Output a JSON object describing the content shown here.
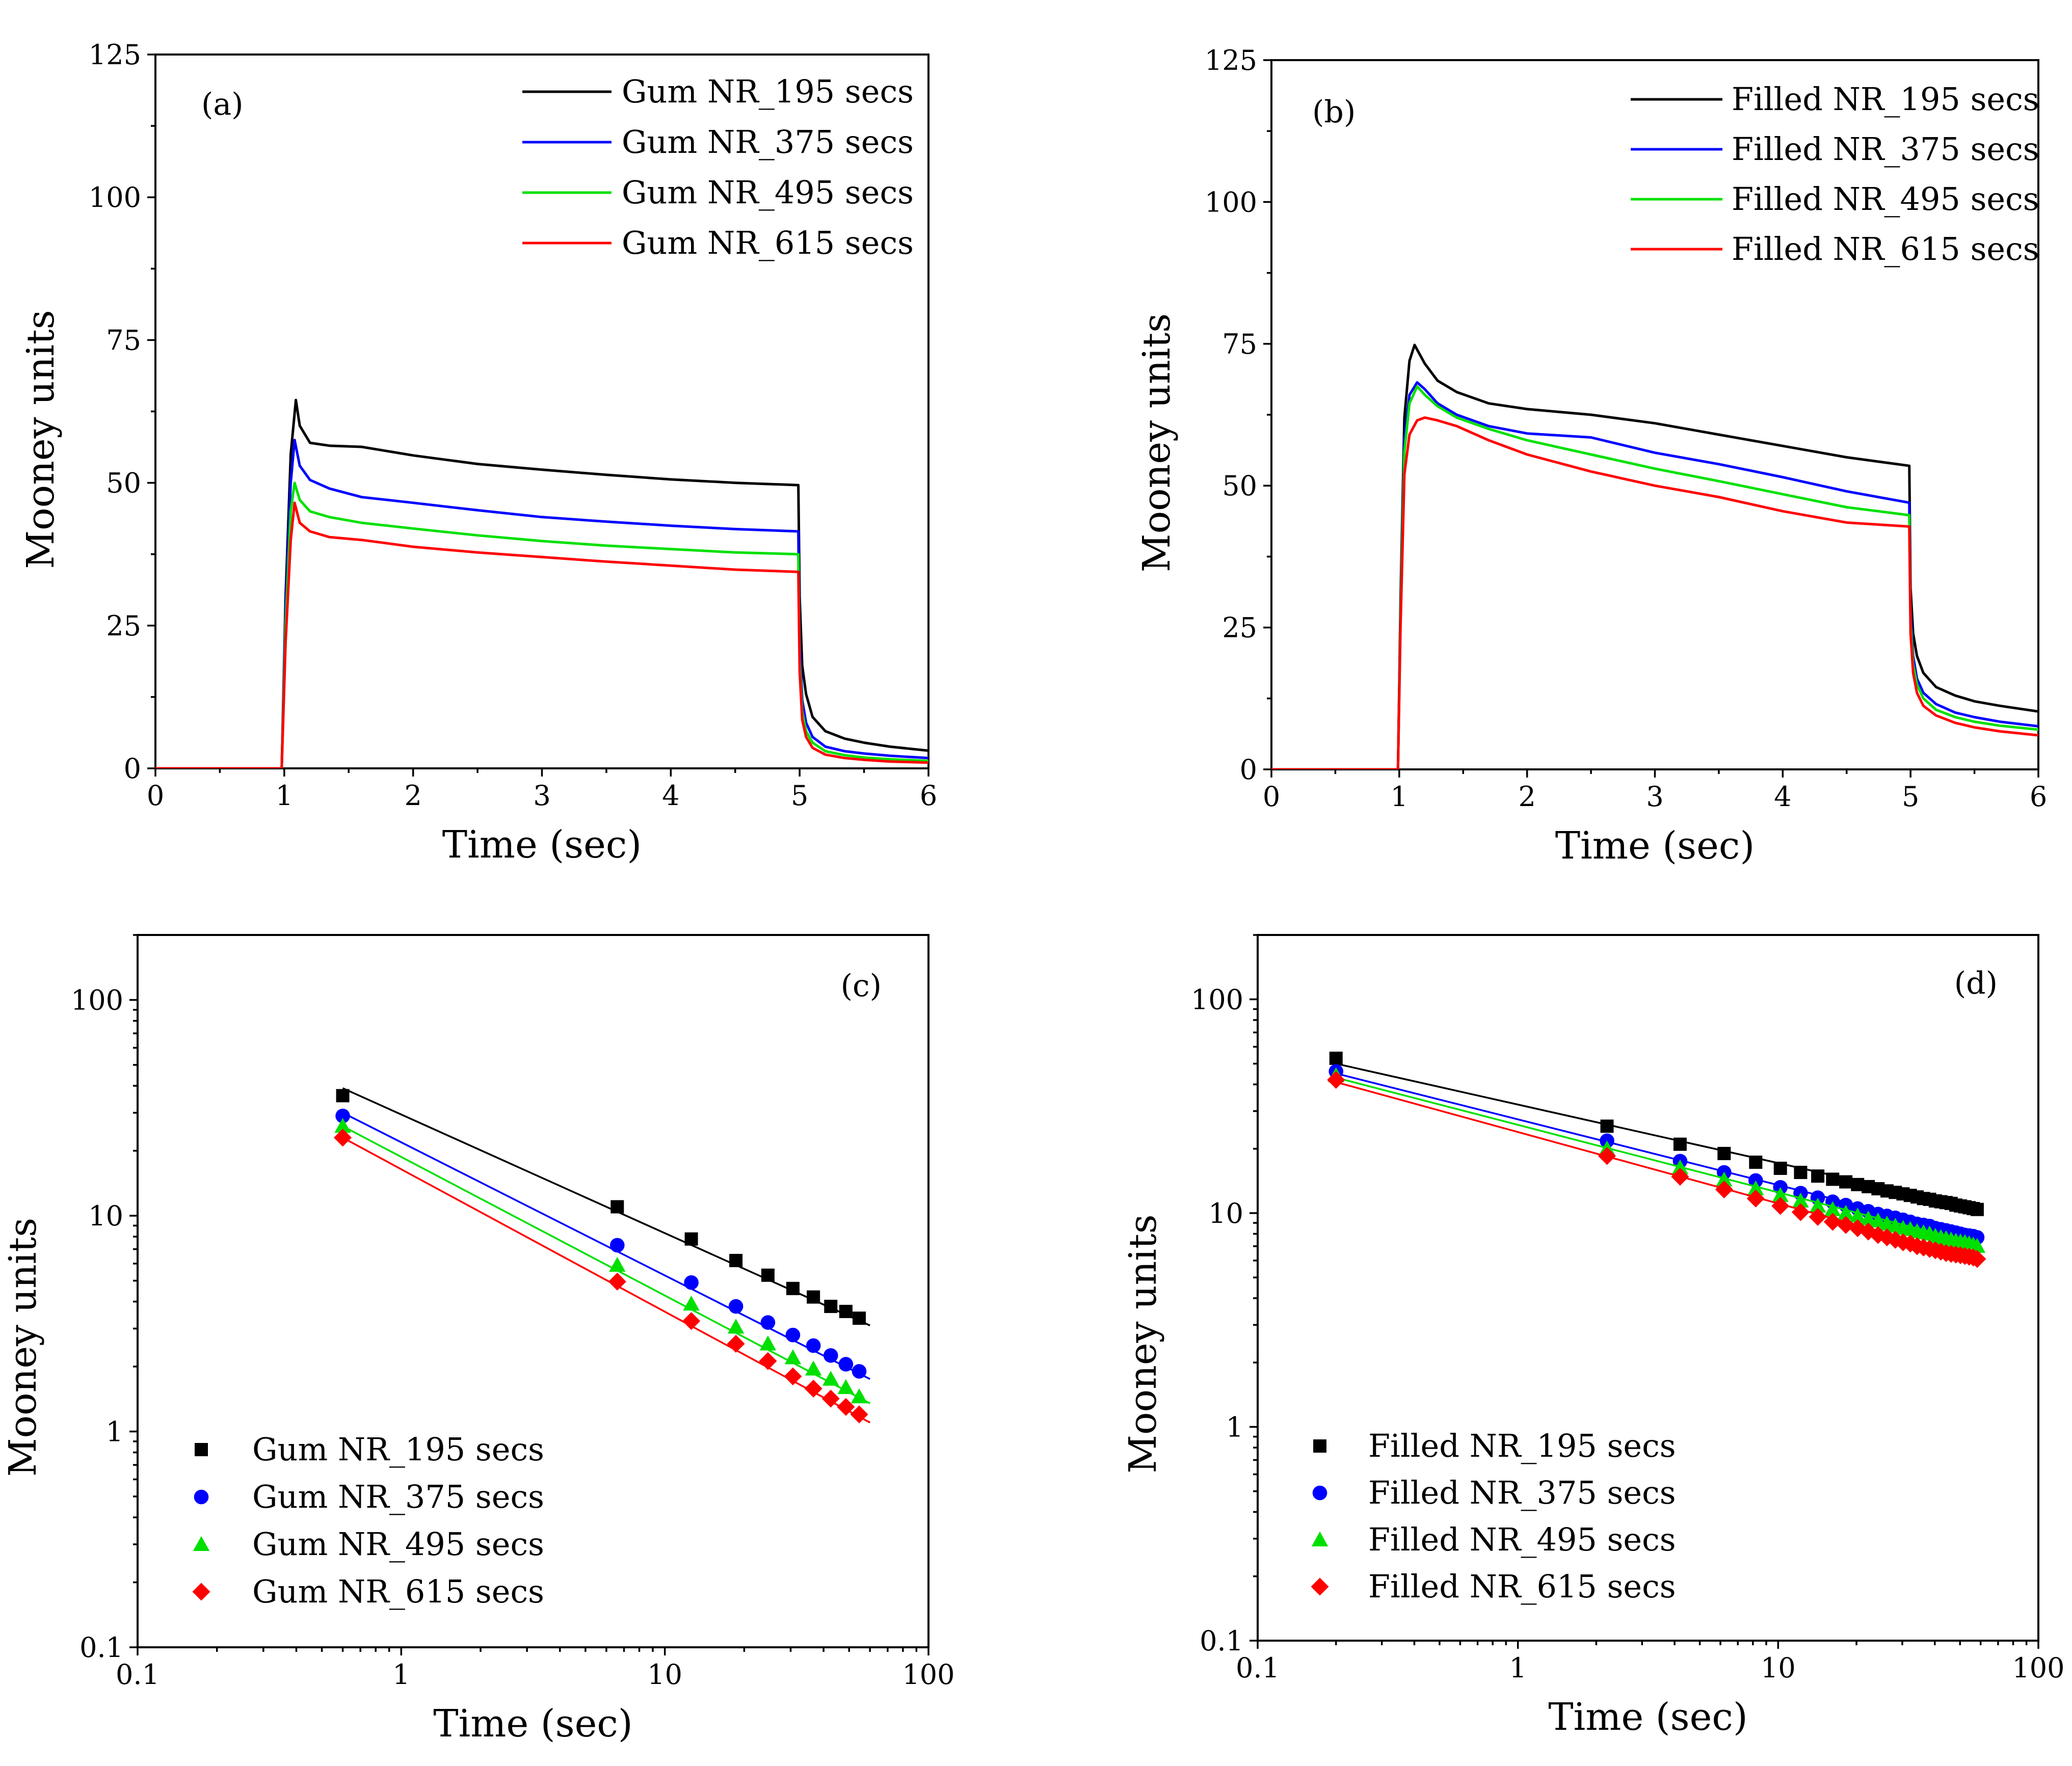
{
  "colors": {
    "black": "#000000",
    "blue": "#0000ff",
    "green": "#00e000",
    "red": "#ff0000"
  },
  "chart_data": [
    {
      "id": "a",
      "panel_label": "(a)",
      "type": "line",
      "xlabel": "Time (sec)",
      "ylabel": "Mooney units",
      "xlim": [
        0,
        6
      ],
      "ylim": [
        0,
        125
      ],
      "xticks": [
        "0",
        "1",
        "2",
        "3",
        "4",
        "5",
        "6"
      ],
      "yticks": [
        "0",
        "25",
        "50",
        "75",
        "100",
        "125"
      ],
      "legend_position": "top-right",
      "series": [
        {
          "name": "Gum NR_195 secs",
          "color": "#000000",
          "x": [
            0,
            0.98,
            1.01,
            1.05,
            1.09,
            1.12,
            1.2,
            1.35,
            1.6,
            2,
            2.5,
            3,
            3.5,
            4,
            4.5,
            4.99,
            5.0,
            5.02,
            5.05,
            5.1,
            5.2,
            5.35,
            5.5,
            5.7,
            6
          ],
          "y": [
            0,
            0,
            30,
            55,
            64.5,
            60,
            57,
            56.5,
            56.3,
            54.8,
            53.3,
            52.3,
            51.4,
            50.6,
            50.0,
            49.6,
            30,
            18,
            13,
            9,
            6.5,
            5.2,
            4.5,
            3.8,
            3.1
          ]
        },
        {
          "name": "Gum NR_375 secs",
          "color": "#0000ff",
          "x": [
            0,
            0.98,
            1.01,
            1.05,
            1.08,
            1.12,
            1.2,
            1.35,
            1.6,
            2,
            2.5,
            3,
            3.5,
            4,
            4.5,
            4.99,
            5.0,
            5.02,
            5.05,
            5.1,
            5.2,
            5.35,
            5.5,
            5.7,
            6
          ],
          "y": [
            0,
            0,
            28,
            50,
            57.5,
            53,
            50.5,
            49,
            47.5,
            46.5,
            45.2,
            44.0,
            43.2,
            42.5,
            41.9,
            41.5,
            22,
            12,
            8,
            5.5,
            3.8,
            3.0,
            2.6,
            2.2,
            1.8
          ]
        },
        {
          "name": "Gum NR_495 secs",
          "color": "#00e000",
          "x": [
            0,
            0.98,
            1.01,
            1.05,
            1.08,
            1.12,
            1.2,
            1.35,
            1.6,
            2,
            2.5,
            3,
            3.5,
            4,
            4.5,
            4.99,
            5.0,
            5.02,
            5.05,
            5.1,
            5.2,
            5.35,
            5.5,
            5.7,
            6
          ],
          "y": [
            0,
            0,
            25,
            45,
            50,
            47,
            45,
            44,
            43,
            42,
            40.8,
            39.8,
            39.0,
            38.4,
            37.8,
            37.5,
            19,
            10,
            6.5,
            4.5,
            3.0,
            2.3,
            1.9,
            1.6,
            1.3
          ]
        },
        {
          "name": "Gum NR_615 secs",
          "color": "#ff0000",
          "x": [
            0,
            0.98,
            1.01,
            1.05,
            1.08,
            1.12,
            1.2,
            1.35,
            1.6,
            2,
            2.5,
            3,
            3.5,
            4,
            4.5,
            4.99,
            5.0,
            5.02,
            5.05,
            5.1,
            5.2,
            5.35,
            5.5,
            5.7,
            6
          ],
          "y": [
            0,
            0,
            22,
            40,
            46.5,
            43,
            41.5,
            40.5,
            40,
            38.8,
            37.8,
            37.0,
            36.2,
            35.5,
            34.8,
            34.4,
            17,
            8.5,
            5.5,
            3.6,
            2.4,
            1.8,
            1.5,
            1.2,
            1.0
          ]
        }
      ]
    },
    {
      "id": "b",
      "panel_label": "(b)",
      "type": "line",
      "xlabel": "Time (sec)",
      "ylabel": "Mooney units",
      "xlim": [
        0,
        6
      ],
      "ylim": [
        0,
        125
      ],
      "xticks": [
        "0",
        "1",
        "2",
        "3",
        "4",
        "5",
        "6"
      ],
      "yticks": [
        "0",
        "25",
        "50",
        "75",
        "100",
        "125"
      ],
      "legend_position": "top-right",
      "series": [
        {
          "name": "Filled NR_195 secs",
          "color": "#000000",
          "x": [
            0,
            0.99,
            1.01,
            1.04,
            1.08,
            1.12,
            1.2,
            1.3,
            1.45,
            1.7,
            2,
            2.5,
            3,
            3.5,
            4,
            4.5,
            4.99,
            5.0,
            5.02,
            5.05,
            5.1,
            5.2,
            5.35,
            5.5,
            5.7,
            6
          ],
          "y": [
            0,
            0,
            30,
            62,
            72,
            74.8,
            71.5,
            68.5,
            66.5,
            64.5,
            63.5,
            62.5,
            61.0,
            59.0,
            57.0,
            55.0,
            53.5,
            32,
            24,
            20,
            17,
            14.5,
            13,
            12,
            11.2,
            10.2
          ]
        },
        {
          "name": "Filled NR_375 secs",
          "color": "#0000ff",
          "x": [
            0,
            0.99,
            1.01,
            1.04,
            1.08,
            1.14,
            1.2,
            1.3,
            1.45,
            1.7,
            2,
            2.5,
            3,
            3.5,
            4,
            4.5,
            4.99,
            5.0,
            5.02,
            5.05,
            5.1,
            5.2,
            5.35,
            5.5,
            5.7,
            6
          ],
          "y": [
            0,
            0,
            28,
            58,
            66,
            68.2,
            67,
            64.5,
            62.5,
            60.5,
            59.2,
            58.5,
            55.8,
            53.8,
            51.5,
            49.0,
            47.0,
            28,
            20,
            16,
            13.5,
            11.5,
            10,
            9.2,
            8.4,
            7.6
          ]
        },
        {
          "name": "Filled NR_495 secs",
          "color": "#00e000",
          "x": [
            0,
            0.99,
            1.01,
            1.04,
            1.08,
            1.14,
            1.2,
            1.3,
            1.45,
            1.7,
            2,
            2.5,
            3,
            3.5,
            4,
            4.5,
            4.99,
            5.0,
            5.02,
            5.05,
            5.1,
            5.2,
            5.35,
            5.5,
            5.7,
            6
          ],
          "y": [
            0,
            0,
            27,
            56,
            64.5,
            67.5,
            66,
            64,
            62,
            60,
            58,
            55.5,
            53.0,
            50.8,
            48.5,
            46.2,
            44.8,
            26,
            18.5,
            15,
            12.5,
            10.5,
            9.2,
            8.4,
            7.7,
            7.0
          ]
        },
        {
          "name": "Filled NR_615 secs",
          "color": "#ff0000",
          "x": [
            0,
            0.99,
            1.01,
            1.04,
            1.08,
            1.14,
            1.2,
            1.3,
            1.45,
            1.7,
            2,
            2.5,
            3,
            3.5,
            4,
            4.5,
            4.99,
            5.0,
            5.02,
            5.05,
            5.1,
            5.2,
            5.35,
            5.5,
            5.7,
            6
          ],
          "y": [
            0,
            0,
            25,
            52,
            59,
            61.5,
            62,
            61.5,
            60.5,
            58,
            55.5,
            52.5,
            50.0,
            48.0,
            45.5,
            43.5,
            42.8,
            24,
            17,
            13.5,
            11.2,
            9.5,
            8.2,
            7.4,
            6.7,
            6.0
          ]
        }
      ]
    },
    {
      "id": "c",
      "panel_label": "(c)",
      "type": "scatter",
      "xscale": "log",
      "yscale": "log",
      "xlabel": "Time (sec)",
      "ylabel": "Mooney units",
      "xlim": [
        0.1,
        100
      ],
      "ylim": [
        0.1,
        200
      ],
      "xticks": [
        "0.1",
        "1",
        "10",
        "100"
      ],
      "yticks": [
        "0.1",
        "1",
        "10",
        "100"
      ],
      "legend_position": "bottom-left",
      "series": [
        {
          "name": "Gum NR_195 secs",
          "color": "#000000",
          "marker": "square",
          "x": [
            0.6,
            6.6,
            12.6,
            18.6,
            24.6,
            30.6,
            36.6,
            42.6,
            48.6,
            54.6
          ],
          "y": [
            36,
            11,
            7.8,
            6.2,
            5.3,
            4.6,
            4.2,
            3.8,
            3.6,
            3.35
          ],
          "fit": {
            "x": [
              0.6,
              60
            ],
            "y": [
              39,
              3.1
            ]
          }
        },
        {
          "name": "Gum NR_375 secs",
          "color": "#0000ff",
          "marker": "circle",
          "x": [
            0.6,
            6.6,
            12.6,
            18.6,
            24.6,
            30.6,
            36.6,
            42.6,
            48.6,
            54.6
          ],
          "y": [
            29,
            7.3,
            4.9,
            3.8,
            3.2,
            2.8,
            2.5,
            2.25,
            2.05,
            1.9
          ],
          "fit": {
            "x": [
              0.6,
              60
            ],
            "y": [
              30,
              1.75
            ]
          }
        },
        {
          "name": "Gum NR_495 secs",
          "color": "#00e000",
          "marker": "triangle",
          "x": [
            0.6,
            6.6,
            12.6,
            18.6,
            24.6,
            30.6,
            36.6,
            42.6,
            48.6,
            54.6
          ],
          "y": [
            26,
            5.9,
            3.9,
            3.05,
            2.55,
            2.2,
            1.95,
            1.75,
            1.6,
            1.45
          ],
          "fit": {
            "x": [
              0.6,
              60
            ],
            "y": [
              26,
              1.35
            ]
          }
        },
        {
          "name": "Gum NR_615 secs",
          "color": "#ff0000",
          "marker": "diamond",
          "x": [
            0.6,
            6.6,
            12.6,
            18.6,
            24.6,
            30.6,
            36.6,
            42.6,
            48.6,
            54.6
          ],
          "y": [
            23,
            4.95,
            3.25,
            2.55,
            2.12,
            1.8,
            1.58,
            1.42,
            1.3,
            1.2
          ],
          "fit": {
            "x": [
              0.6,
              60
            ],
            "y": [
              23,
              1.1
            ]
          }
        }
      ]
    },
    {
      "id": "d",
      "panel_label": "(d)",
      "type": "scatter",
      "xscale": "log",
      "yscale": "log",
      "xlabel": "Time (sec)",
      "ylabel": "Mooney units",
      "xlim": [
        0.1,
        100
      ],
      "ylim": [
        0.1,
        200
      ],
      "xticks": [
        "0.1",
        "1",
        "10",
        "100"
      ],
      "yticks": [
        "0.1",
        "1",
        "10",
        "100"
      ],
      "legend_position": "bottom-left",
      "series": [
        {
          "name": "Filled NR_195 secs",
          "color": "#000000",
          "marker": "square",
          "x": [
            0.2,
            2.2,
            4.2,
            6.2,
            8.2,
            10.2,
            12.2,
            14.2,
            16.2,
            18.2,
            20.2,
            22.2,
            24.2,
            26.2,
            28.2,
            30.2,
            32.2,
            34.2,
            36.2,
            38.2,
            40.2,
            42.2,
            44.2,
            46.2,
            48.2,
            50.2,
            52.2,
            54.2,
            56.2,
            58.2
          ],
          "y": [
            53,
            25.5,
            21,
            19,
            17.3,
            16.2,
            15.5,
            14.9,
            14.4,
            14.0,
            13.6,
            13.3,
            13.0,
            12.7,
            12.5,
            12.3,
            12.1,
            11.9,
            11.7,
            11.6,
            11.4,
            11.3,
            11.2,
            11.1,
            10.9,
            10.8,
            10.7,
            10.6,
            10.5,
            10.4
          ],
          "fit": {
            "x": [
              0.2,
              60
            ],
            "y": [
              50,
              10.5
            ]
          }
        },
        {
          "name": "Filled NR_375 secs",
          "color": "#0000ff",
          "marker": "circle",
          "x": [
            0.2,
            2.2,
            4.2,
            6.2,
            8.2,
            10.2,
            12.2,
            14.2,
            16.2,
            18.2,
            20.2,
            22.2,
            24.2,
            26.2,
            28.2,
            30.2,
            32.2,
            34.2,
            36.2,
            38.2,
            40.2,
            42.2,
            44.2,
            46.2,
            48.2,
            50.2,
            52.2,
            54.2,
            56.2,
            58.2
          ],
          "y": [
            46,
            21.8,
            17.5,
            15.5,
            14.2,
            13.2,
            12.4,
            11.8,
            11.3,
            10.9,
            10.5,
            10.2,
            9.9,
            9.7,
            9.5,
            9.3,
            9.1,
            8.9,
            8.8,
            8.7,
            8.5,
            8.4,
            8.3,
            8.2,
            8.1,
            8.0,
            7.9,
            7.85,
            7.8,
            7.7
          ],
          "fit": {
            "x": [
              0.2,
              60
            ],
            "y": [
              45,
              7.8
            ]
          }
        },
        {
          "name": "Filled NR_495 secs",
          "color": "#00e000",
          "marker": "triangle",
          "x": [
            0.2,
            2.2,
            4.2,
            6.2,
            8.2,
            10.2,
            12.2,
            14.2,
            16.2,
            18.2,
            20.2,
            22.2,
            24.2,
            26.2,
            28.2,
            30.2,
            32.2,
            34.2,
            36.2,
            38.2,
            40.2,
            42.2,
            44.2,
            46.2,
            48.2,
            50.2,
            52.2,
            54.2,
            56.2,
            58.2
          ],
          "y": [
            44,
            20,
            16.3,
            14.3,
            13.0,
            12.1,
            11.4,
            10.8,
            10.4,
            10.0,
            9.7,
            9.4,
            9.2,
            8.9,
            8.7,
            8.5,
            8.4,
            8.2,
            8.1,
            8.0,
            7.8,
            7.7,
            7.6,
            7.5,
            7.4,
            7.35,
            7.3,
            7.2,
            7.1,
            7.0
          ],
          "fit": {
            "x": [
              0.2,
              60
            ],
            "y": [
              43,
              7.1
            ]
          }
        },
        {
          "name": "Filled NR_615 secs",
          "color": "#ff0000",
          "marker": "diamond",
          "x": [
            0.2,
            2.2,
            4.2,
            6.2,
            8.2,
            10.2,
            12.2,
            14.2,
            16.2,
            18.2,
            20.2,
            22.2,
            24.2,
            26.2,
            28.2,
            30.2,
            32.2,
            34.2,
            36.2,
            38.2,
            40.2,
            42.2,
            44.2,
            46.2,
            48.2,
            50.2,
            52.2,
            54.2,
            56.2,
            58.2
          ],
          "y": [
            42,
            18.5,
            14.8,
            12.9,
            11.7,
            10.8,
            10.1,
            9.6,
            9.1,
            8.8,
            8.5,
            8.2,
            7.9,
            7.7,
            7.5,
            7.3,
            7.2,
            7.0,
            6.9,
            6.8,
            6.7,
            6.6,
            6.5,
            6.45,
            6.4,
            6.35,
            6.3,
            6.25,
            6.2,
            6.1
          ],
          "fit": {
            "x": [
              0.2,
              60
            ],
            "y": [
              41,
              6.1
            ]
          }
        }
      ]
    }
  ]
}
